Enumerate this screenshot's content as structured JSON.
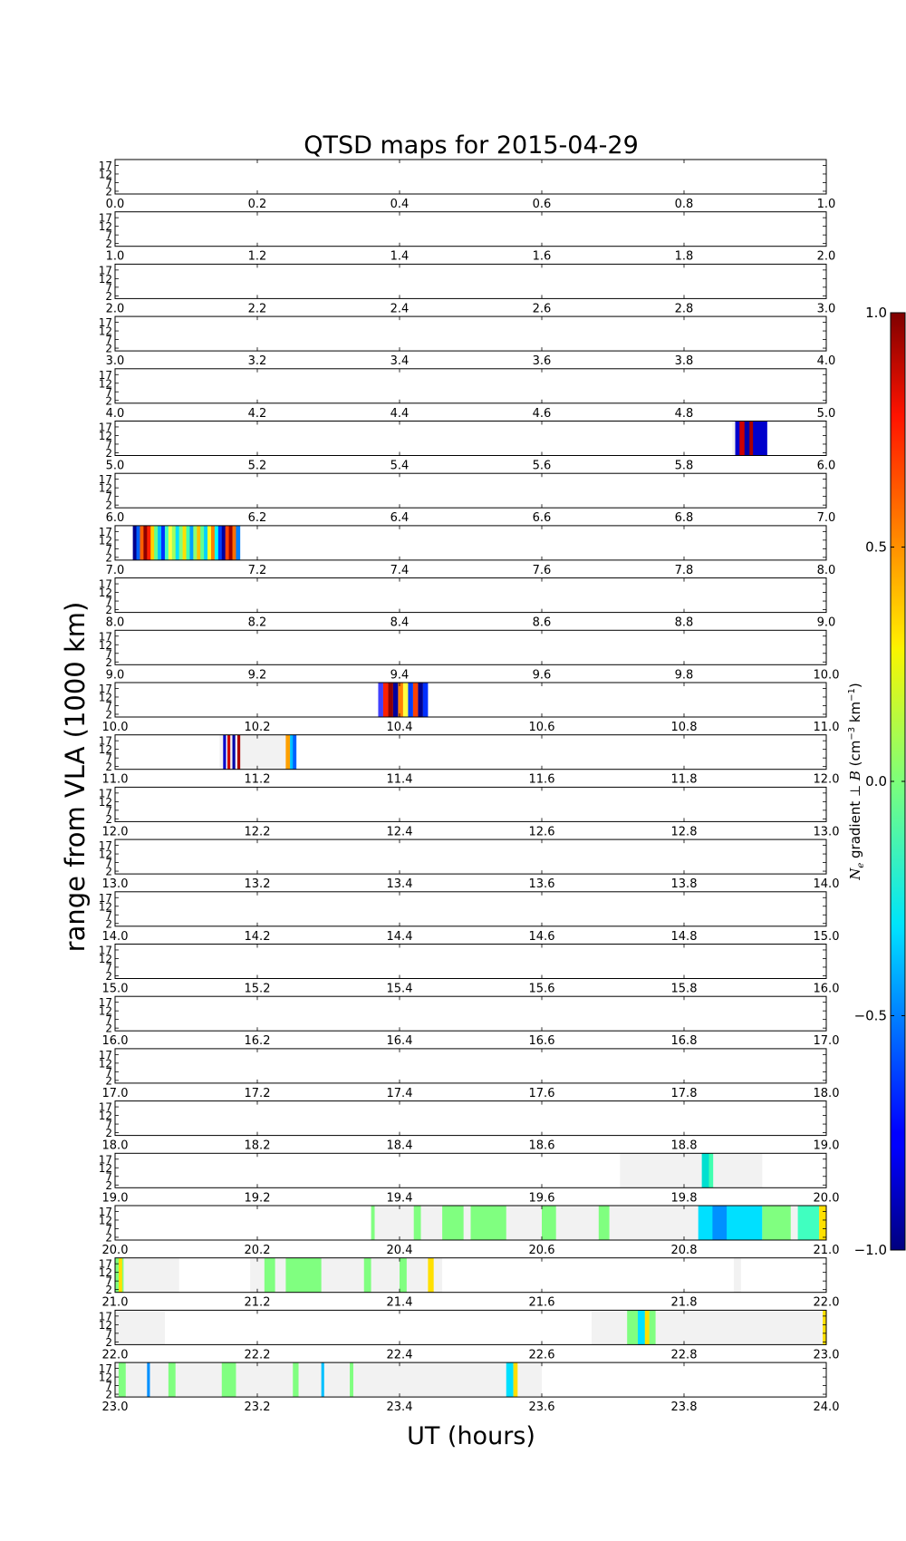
{
  "chart_data": {
    "type": "heatmap",
    "title": "QTSD maps for 2015-04-29",
    "xlabel": "UT (hours)",
    "ylabel": "range from VLA (1000 km)",
    "y_ticks": [
      "2",
      "7",
      "12",
      "17"
    ],
    "colorbar": {
      "label": "N_e gradient ⊥ B (cm^-3 km^-1)",
      "label_parts": {
        "symbol": "N",
        "sub": "e",
        "mid": " gradient ⊥ ",
        "vec": "B",
        "unit_open": " (cm",
        "exp1": "−3",
        "unit_mid": " km",
        "exp2": "−1",
        "unit_close": ")"
      },
      "ticks": [
        "1.0",
        "0.5",
        "0.0",
        "−0.5",
        "−1.0"
      ],
      "range": [
        -1.0,
        1.0
      ],
      "colormap": "jet"
    },
    "panels": [
      {
        "hour": 0,
        "ticks": [
          "0.0",
          "0.2",
          "0.4",
          "0.6",
          "0.8",
          "1.0"
        ],
        "coverage": [],
        "features": []
      },
      {
        "hour": 1,
        "ticks": [
          "1.0",
          "1.2",
          "1.4",
          "1.6",
          "1.8",
          "2.0"
        ],
        "coverage": [],
        "features": []
      },
      {
        "hour": 2,
        "ticks": [
          "2.0",
          "2.2",
          "2.4",
          "2.6",
          "2.8",
          "3.0"
        ],
        "coverage": [],
        "features": []
      },
      {
        "hour": 3,
        "ticks": [
          "3.0",
          "3.2",
          "3.4",
          "3.6",
          "3.8",
          "4.0"
        ],
        "coverage": [],
        "features": []
      },
      {
        "hour": 4,
        "ticks": [
          "4.0",
          "4.2",
          "4.4",
          "4.6",
          "4.8",
          "5.0"
        ],
        "coverage": [],
        "features": []
      },
      {
        "hour": 5,
        "ticks": [
          "5.0",
          "5.2",
          "5.4",
          "5.6",
          "5.8",
          "6.0"
        ],
        "coverage": [
          [
            5.868,
            5.904
          ]
        ],
        "features": [
          [
            5.872,
            0.02,
            "#0000cc"
          ],
          [
            5.878,
            0.02,
            "#cc0000"
          ],
          [
            5.885,
            0.02,
            "#0000aa"
          ],
          [
            5.892,
            0.02,
            "#aa0000"
          ],
          [
            5.897,
            0.02,
            "#0000cc"
          ]
        ]
      },
      {
        "hour": 6,
        "ticks": [
          "6.0",
          "6.2",
          "6.4",
          "6.6",
          "6.8",
          "7.0"
        ],
        "coverage": [],
        "features": []
      },
      {
        "hour": 7,
        "ticks": [
          "7.0",
          "7.2",
          "7.4",
          "7.6",
          "7.8",
          "8.0"
        ],
        "coverage": [
          [
            7.025,
            7.175
          ]
        ],
        "features": [
          [
            7.025,
            0.006,
            "#00008f"
          ],
          [
            7.03,
            0.006,
            "#0060ff"
          ],
          [
            7.035,
            0.006,
            "#ff6000"
          ],
          [
            7.04,
            0.006,
            "#8f0000"
          ],
          [
            7.045,
            0.006,
            "#ff2000"
          ],
          [
            7.05,
            0.006,
            "#ffd000"
          ],
          [
            7.055,
            0.006,
            "#60ff90"
          ],
          [
            7.06,
            0.006,
            "#00c0ff"
          ],
          [
            7.065,
            0.006,
            "#0030ff"
          ],
          [
            7.07,
            0.006,
            "#40ffc0"
          ],
          [
            7.075,
            0.006,
            "#ffff40"
          ],
          [
            7.08,
            0.006,
            "#a0ff60"
          ],
          [
            7.085,
            0.006,
            "#00e0ff"
          ],
          [
            7.09,
            0.006,
            "#80ff80"
          ],
          [
            7.095,
            0.006,
            "#ffe000"
          ],
          [
            7.1,
            0.006,
            "#40ffb0"
          ],
          [
            7.105,
            0.006,
            "#00a0ff"
          ],
          [
            7.11,
            0.006,
            "#90ff70"
          ],
          [
            7.115,
            0.006,
            "#ffc000"
          ],
          [
            7.12,
            0.006,
            "#60ff90"
          ],
          [
            7.125,
            0.006,
            "#00d0ff"
          ],
          [
            7.13,
            0.006,
            "#ffff20"
          ],
          [
            7.135,
            0.006,
            "#ff8000"
          ],
          [
            7.14,
            0.006,
            "#00ffff"
          ],
          [
            7.145,
            0.006,
            "#0040ff"
          ],
          [
            7.15,
            0.006,
            "#00009f"
          ],
          [
            7.155,
            0.006,
            "#ff4000"
          ],
          [
            7.16,
            0.006,
            "#9f0000"
          ],
          [
            7.165,
            0.006,
            "#ff7000"
          ],
          [
            7.17,
            0.006,
            "#0080ff"
          ]
        ]
      },
      {
        "hour": 8,
        "ticks": [
          "8.0",
          "8.2",
          "8.4",
          "8.6",
          "8.8",
          "9.0"
        ],
        "coverage": [],
        "features": []
      },
      {
        "hour": 9,
        "ticks": [
          "9.0",
          "9.2",
          "9.4",
          "9.6",
          "9.8",
          "10.0"
        ],
        "coverage": [],
        "features": []
      },
      {
        "hour": 10,
        "ticks": [
          "10.0",
          "10.2",
          "10.4",
          "10.6",
          "10.8",
          "11.0"
        ],
        "coverage": [
          [
            10.37,
            10.44
          ]
        ],
        "features": [
          [
            10.37,
            0.007,
            "#4040ff"
          ],
          [
            10.377,
            0.007,
            "#ff2000"
          ],
          [
            10.384,
            0.007,
            "#8f0000"
          ],
          [
            10.391,
            0.007,
            "#00009f"
          ],
          [
            10.398,
            0.007,
            "#ff8000"
          ],
          [
            10.405,
            0.007,
            "#ffff40"
          ],
          [
            10.412,
            0.007,
            "#0040ff"
          ],
          [
            10.419,
            0.007,
            "#ff4000"
          ],
          [
            10.426,
            0.007,
            "#00008f"
          ],
          [
            10.433,
            0.007,
            "#0030ff"
          ]
        ]
      },
      {
        "hour": 11,
        "ticks": [
          "11.0",
          "11.2",
          "11.4",
          "11.6",
          "11.8",
          "12.0"
        ],
        "coverage": [
          [
            11.147,
            11.255
          ]
        ],
        "features": [
          [
            11.152,
            0.004,
            "#0000cc"
          ],
          [
            11.158,
            0.004,
            "#cc0000"
          ],
          [
            11.165,
            0.004,
            "#0000aa"
          ],
          [
            11.172,
            0.004,
            "#aa0000"
          ],
          [
            11.24,
            0.006,
            "#ffa000"
          ],
          [
            11.246,
            0.006,
            "#00c0ff"
          ],
          [
            11.25,
            0.005,
            "#0060ff"
          ]
        ]
      },
      {
        "hour": 12,
        "ticks": [
          "12.0",
          "12.2",
          "12.4",
          "12.6",
          "12.8",
          "13.0"
        ],
        "coverage": [],
        "features": []
      },
      {
        "hour": 13,
        "ticks": [
          "13.0",
          "13.2",
          "13.4",
          "13.6",
          "13.8",
          "14.0"
        ],
        "coverage": [],
        "features": []
      },
      {
        "hour": 14,
        "ticks": [
          "14.0",
          "14.2",
          "14.4",
          "14.6",
          "14.8",
          "15.0"
        ],
        "coverage": [],
        "features": []
      },
      {
        "hour": 15,
        "ticks": [
          "15.0",
          "15.2",
          "15.4",
          "15.6",
          "15.8",
          "16.0"
        ],
        "coverage": [],
        "features": []
      },
      {
        "hour": 16,
        "ticks": [
          "16.0",
          "16.2",
          "16.4",
          "16.6",
          "16.8",
          "17.0"
        ],
        "coverage": [],
        "features": []
      },
      {
        "hour": 17,
        "ticks": [
          "17.0",
          "17.2",
          "17.4",
          "17.6",
          "17.8",
          "18.0"
        ],
        "coverage": [],
        "features": []
      },
      {
        "hour": 18,
        "ticks": [
          "18.0",
          "18.2",
          "18.4",
          "18.6",
          "18.8",
          "19.0"
        ],
        "coverage": [],
        "features": []
      },
      {
        "hour": 19,
        "ticks": [
          "19.0",
          "19.2",
          "19.4",
          "19.6",
          "19.8",
          "20.0"
        ],
        "coverage": [
          [
            19.71,
            19.91
          ]
        ],
        "features": [
          [
            19.825,
            0.015,
            "#00e0d0"
          ],
          [
            19.835,
            0.006,
            "#40ffb0"
          ]
        ]
      },
      {
        "hour": 20,
        "ticks": [
          "20.0",
          "20.2",
          "20.4",
          "20.6",
          "20.8",
          "21.0"
        ],
        "coverage": [
          [
            20.36,
            21.0
          ]
        ],
        "features": [
          [
            20.36,
            0.005,
            "#80ff80"
          ],
          [
            20.42,
            0.01,
            "#80ff80"
          ],
          [
            20.46,
            0.03,
            "#80ff80"
          ],
          [
            20.5,
            0.05,
            "#80ff80"
          ],
          [
            20.6,
            0.02,
            "#80ff80"
          ],
          [
            20.68,
            0.015,
            "#80ff80"
          ],
          [
            20.82,
            0.09,
            "#00e0ff"
          ],
          [
            20.84,
            0.02,
            "#0090ff"
          ],
          [
            20.91,
            0.04,
            "#80ff80"
          ],
          [
            20.96,
            0.03,
            "#40ffc0"
          ],
          [
            20.99,
            0.01,
            "#ffe000"
          ]
        ]
      },
      {
        "hour": 21,
        "ticks": [
          "21.0",
          "21.2",
          "21.4",
          "21.6",
          "21.8",
          "22.0"
        ],
        "coverage": [
          [
            21.0,
            21.09
          ],
          [
            21.19,
            21.46
          ],
          [
            21.87,
            21.88
          ]
        ],
        "features": [
          [
            21.0,
            0.012,
            "#80ff80"
          ],
          [
            21.005,
            0.005,
            "#ffe000"
          ],
          [
            21.21,
            0.015,
            "#80ff80"
          ],
          [
            21.24,
            0.05,
            "#80ff80"
          ],
          [
            21.35,
            0.01,
            "#80ff80"
          ],
          [
            21.4,
            0.01,
            "#80ff80"
          ],
          [
            21.44,
            0.008,
            "#ffe000"
          ]
        ]
      },
      {
        "hour": 22,
        "ticks": [
          "22.0",
          "22.2",
          "22.4",
          "22.6",
          "22.8",
          "23.0"
        ],
        "coverage": [
          [
            22.0,
            22.07
          ],
          [
            22.67,
            23.0
          ]
        ],
        "features": [
          [
            22.72,
            0.04,
            "#80ff80"
          ],
          [
            22.735,
            0.01,
            "#00e0ff"
          ],
          [
            22.745,
            0.006,
            "#ffe000"
          ],
          [
            22.995,
            0.005,
            "#ffe000"
          ]
        ]
      },
      {
        "hour": 23,
        "ticks": [
          "23.0",
          "23.2",
          "23.4",
          "23.6",
          "23.8",
          "24.0"
        ],
        "coverage": [
          [
            23.0,
            23.6
          ]
        ],
        "features": [
          [
            23.005,
            0.01,
            "#80ff80"
          ],
          [
            23.045,
            0.004,
            "#0090ff"
          ],
          [
            23.075,
            0.01,
            "#80ff80"
          ],
          [
            23.15,
            0.02,
            "#80ff80"
          ],
          [
            23.25,
            0.008,
            "#80ff80"
          ],
          [
            23.29,
            0.004,
            "#00c0ff"
          ],
          [
            23.33,
            0.005,
            "#80ff80"
          ],
          [
            23.55,
            0.01,
            "#00e0ff"
          ],
          [
            23.56,
            0.006,
            "#ffe000"
          ]
        ]
      }
    ]
  }
}
